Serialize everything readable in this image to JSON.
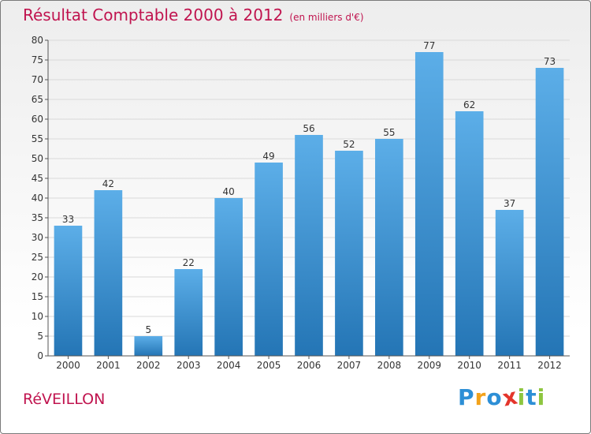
{
  "title": "Résultat Comptable 2000 à 2012",
  "subtitle": "(en milliers d'€)",
  "commune": "RéVEILLON",
  "logo": {
    "text": "Proxiti",
    "letters": [
      "P",
      "r",
      "o",
      "x",
      "i",
      "t",
      "i"
    ],
    "colors": [
      "#2d8fd6",
      "#f2a21b",
      "#2d8fd6",
      "#e4352b",
      "#8dc63f",
      "#2d8fd6",
      "#8dc63f"
    ]
  },
  "colors": {
    "title": "#c0144f",
    "bar_top": "#5caee8",
    "bar_bottom": "#2475b5",
    "axis": "#555555",
    "grid": "#d9d9d9"
  },
  "chart_data": {
    "type": "bar",
    "title": "Résultat Comptable 2000 à 2012",
    "subtitle": "(en milliers d'€)",
    "xlabel": "",
    "ylabel": "",
    "categories": [
      "2000",
      "2001",
      "2002",
      "2003",
      "2004",
      "2005",
      "2006",
      "2007",
      "2008",
      "2009",
      "2010",
      "2011",
      "2012"
    ],
    "values": [
      33,
      42,
      5,
      22,
      40,
      49,
      56,
      52,
      55,
      77,
      62,
      37,
      73
    ],
    "ylim": [
      0,
      80
    ],
    "yticks": [
      0,
      5,
      10,
      15,
      20,
      25,
      30,
      35,
      40,
      45,
      50,
      55,
      60,
      65,
      70,
      75,
      80
    ],
    "grid": true,
    "legend": "none"
  }
}
